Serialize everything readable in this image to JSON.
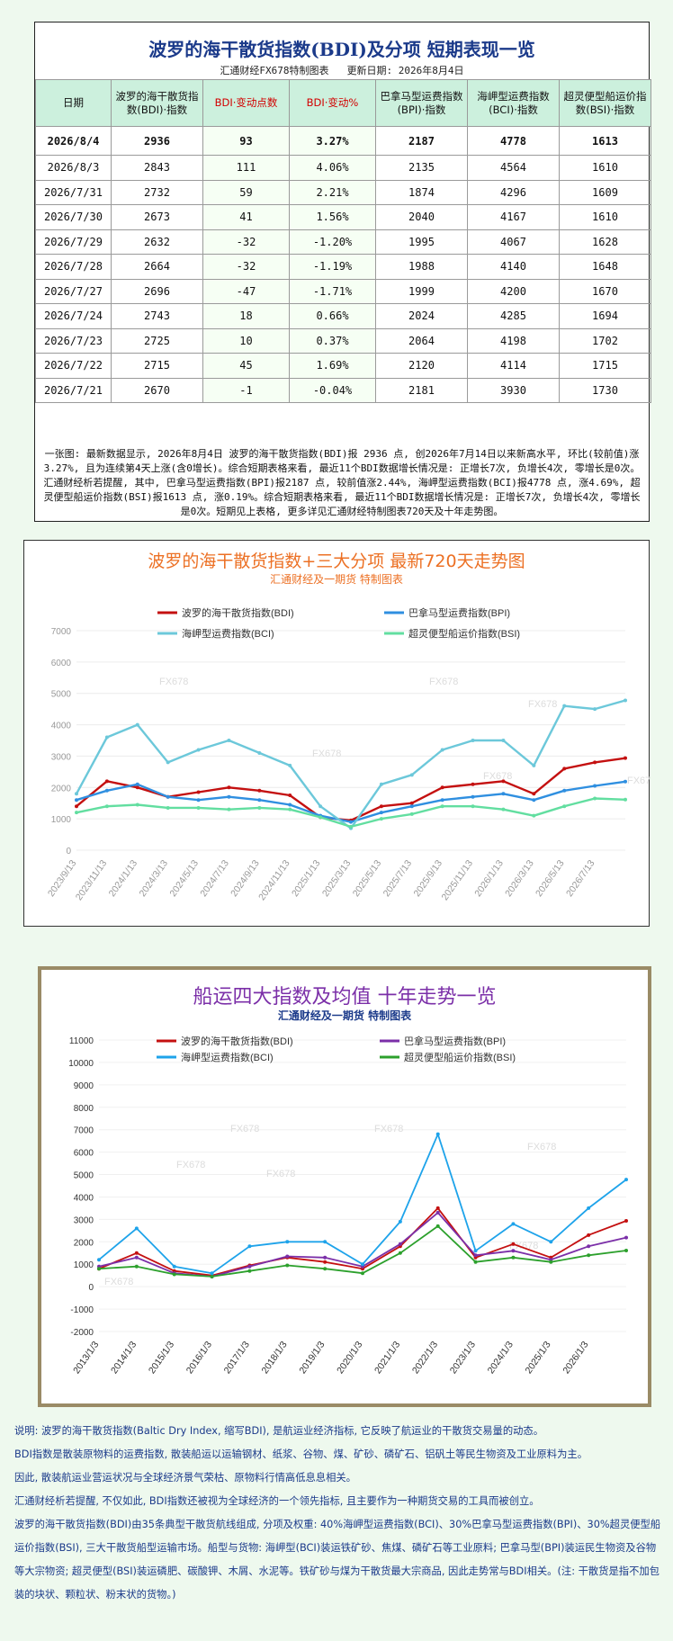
{
  "table": {
    "title": "波罗的海干散货指数(BDI)及分项 短期表现一览",
    "producer": "汇通财经FX678特制图表",
    "updated": "更新日期: 2026年8月4日",
    "headers": [
      "日期",
      "波罗的海干散货指数(BDI)·指数",
      "BDI·变动点数",
      "BDI·变动%",
      "巴拿马型运费指数(BPI)·指数",
      "海岬型运费指数(BCI)·指数",
      "超灵便型船运价指数(BSI)·指数"
    ],
    "rows": [
      [
        "2026/8/4",
        "2936",
        "93",
        "3.27%",
        "2187",
        "4778",
        "1613"
      ],
      [
        "2026/8/3",
        "2843",
        "111",
        "4.06%",
        "2135",
        "4564",
        "1610"
      ],
      [
        "2026/7/31",
        "2732",
        "59",
        "2.21%",
        "1874",
        "4296",
        "1609"
      ],
      [
        "2026/7/30",
        "2673",
        "41",
        "1.56%",
        "2040",
        "4167",
        "1610"
      ],
      [
        "2026/7/29",
        "2632",
        "-32",
        "-1.20%",
        "1995",
        "4067",
        "1628"
      ],
      [
        "2026/7/28",
        "2664",
        "-32",
        "-1.19%",
        "1988",
        "4140",
        "1648"
      ],
      [
        "2026/7/27",
        "2696",
        "-47",
        "-1.71%",
        "1999",
        "4200",
        "1670"
      ],
      [
        "2026/7/24",
        "2743",
        "18",
        "0.66%",
        "2024",
        "4285",
        "1694"
      ],
      [
        "2026/7/23",
        "2725",
        "10",
        "0.37%",
        "2064",
        "4198",
        "1702"
      ],
      [
        "2026/7/22",
        "2715",
        "45",
        "1.69%",
        "2120",
        "4114",
        "1715"
      ],
      [
        "2026/7/21",
        "2670",
        "-1",
        "-0.04%",
        "2181",
        "3930",
        "1730"
      ]
    ],
    "note": "一张图: 最新数据显示, 2026年8月4日 波罗的海干散货指数(BDI)报 2936 点, 创2026年7月14日以来新高水平, 环比(较前值)涨3.27%, 且为连续第4天上涨(含0增长)。综合短期表格来看, 最近11个BDI数据增长情况是: 正增长7次, 负增长4次, 零增长是0次。汇通财经析若提醒, 其中, 巴拿马型运费指数(BPI)报2187 点, 较前值涨2.44%, 海岬型运费指数(BCI)报4778 点, 涨4.69%, 超灵便型船运价指数(BSI)报1613 点, 涨0.19%。综合短期表格来看, 最近11个BDI数据增长情况是: 正增长7次, 负增长4次, 零增长是0次。短期见上表格, 更多详见汇通财经特制图表720天及十年走势图。"
  },
  "chart1": {
    "title": "波罗的海干散货指数+三大分项 最新720天走势图",
    "subtitle": "汇通财经及一期货 特制图表",
    "watermark": "FX678"
  },
  "chart2": {
    "title": "船运四大指数及均值 十年走势一览",
    "subtitle": "汇通财经及一期货 特制图表",
    "watermark": "FX678"
  },
  "chart_data": [
    {
      "type": "line",
      "title": "波罗的海干散货指数+三大分项 最新720天走势图",
      "legend": "top",
      "ylim": [
        0,
        7000
      ],
      "yticks": [
        0,
        1000,
        2000,
        3000,
        4000,
        5000,
        6000,
        7000
      ],
      "x": [
        "2023/9/13",
        "2023/11/13",
        "2024/1/13",
        "2024/3/13",
        "2024/5/13",
        "2024/7/13",
        "2024/9/13",
        "2024/11/13",
        "2025/1/13",
        "2025/3/13",
        "2025/5/13",
        "2025/7/13",
        "2025/9/13",
        "2025/11/13",
        "2026/1/13",
        "2026/3/13",
        "2026/5/13",
        "2026/7/13",
        "2026/8/4"
      ],
      "series": [
        {
          "name": "波罗的海干散货指数(BDI)",
          "color": "#c41010",
          "values": [
            1400,
            2200,
            2000,
            1700,
            1850,
            2000,
            1900,
            1750,
            1050,
            950,
            1400,
            1500,
            2000,
            2100,
            2200,
            1800,
            2600,
            2800,
            2936
          ]
        },
        {
          "name": "巴拿马型运费指数(BPI)",
          "color": "#2f8fe0",
          "values": [
            1600,
            1900,
            2100,
            1700,
            1600,
            1700,
            1600,
            1450,
            1100,
            900,
            1200,
            1400,
            1600,
            1700,
            1800,
            1600,
            1900,
            2050,
            2187
          ]
        },
        {
          "name": "海岬型运费指数(BCI)",
          "color": "#6cc8da",
          "values": [
            1800,
            3600,
            4000,
            2800,
            3200,
            3500,
            3100,
            2700,
            1400,
            700,
            2100,
            2400,
            3200,
            3500,
            3500,
            2700,
            4600,
            4500,
            4778
          ]
        },
        {
          "name": "超灵便型船运价指数(BSI)",
          "color": "#62dea0",
          "values": [
            1200,
            1400,
            1450,
            1350,
            1350,
            1300,
            1350,
            1300,
            1050,
            750,
            1000,
            1150,
            1400,
            1400,
            1300,
            1100,
            1400,
            1650,
            1613
          ]
        }
      ]
    },
    {
      "type": "line",
      "title": "船运四大指数及均值 十年走势一览",
      "legend": "top",
      "ylim": [
        -2000,
        11000
      ],
      "yticks": [
        -2000,
        -1000,
        0,
        1000,
        2000,
        3000,
        4000,
        5000,
        6000,
        7000,
        8000,
        9000,
        10000,
        11000
      ],
      "x": [
        "2013/1/3",
        "2014/1/3",
        "2015/1/3",
        "2016/1/3",
        "2017/1/3",
        "2018/1/3",
        "2019/1/3",
        "2020/1/3",
        "2021/1/3",
        "2022/1/3",
        "2023/1/3",
        "2024/1/3",
        "2025/1/3",
        "2026/1/3",
        "2026/8/4"
      ],
      "series": [
        {
          "name": "波罗的海干散货指数(BDI)",
          "color": "#c41010",
          "values": [
            800,
            1500,
            700,
            500,
            950,
            1300,
            1100,
            800,
            1800,
            3500,
            1300,
            1900,
            1300,
            2300,
            2936
          ]
        },
        {
          "name": "巴拿马型运费指数(BPI)",
          "color": "#7b2fa8",
          "values": [
            900,
            1300,
            600,
            450,
            900,
            1350,
            1300,
            900,
            1900,
            3300,
            1400,
            1600,
            1200,
            1800,
            2187
          ]
        },
        {
          "name": "海岬型运费指数(BCI)",
          "color": "#1ea3ea",
          "values": [
            1200,
            2600,
            900,
            600,
            1800,
            2000,
            2000,
            1000,
            2900,
            6800,
            1600,
            2800,
            2000,
            3500,
            4778
          ]
        },
        {
          "name": "超灵便型船运价指数(BSI)",
          "color": "#2ca02c",
          "values": [
            800,
            900,
            550,
            450,
            700,
            950,
            800,
            600,
            1500,
            2700,
            1100,
            1300,
            1100,
            1400,
            1613
          ]
        }
      ]
    }
  ],
  "footer": [
    "说明: 波罗的海干散货指数(Baltic Dry Index, 缩写BDI), 是航运业经济指标, 它反映了航运业的干散货交易量的动态。",
    "BDI指数是散装原物料的运费指数, 散装船运以运输钢材、纸浆、谷物、煤、矿砂、磷矿石、铝矾土等民生物资及工业原料为主。",
    "因此, 散装航运业营运状况与全球经济景气荣枯、原物料行情高低息息相关。",
    "汇通财经析若提醒, 不仅如此, BDI指数还被视为全球经济的一个领先指标, 且主要作为一种期货交易的工具而被创立。",
    "波罗的海干散货指数(BDI)由35条典型干散货航线组成, 分项及权重: 40%海岬型运费指数(BCI)、30%巴拿马型运费指数(BPI)、30%超灵便型船运价指数(BSI), 三大干散货船型运输市场。船型与货物: 海岬型(BCI)装运铁矿砂、焦煤、磷矿石等工业原料; 巴拿马型(BPI)装运民生物资及谷物等大宗物资; 超灵便型(BSI)装运磷肥、碳酸钾、木屑、水泥等。铁矿砂与煤为干散货最大宗商品, 因此走势常与BDI相关。(注: 干散货是指不加包装的块状、颗粒状、粉末状的货物。)"
  ]
}
